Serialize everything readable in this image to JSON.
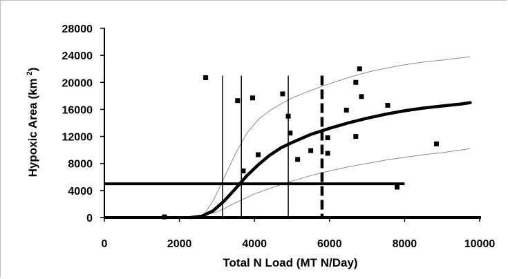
{
  "chart_data": {
    "type": "scatter",
    "xlabel": "Total N Load (MT N/Day)",
    "ylabel": "Hypoxic Area (km ²)",
    "ylabel_main": "Hypoxic Area (km",
    "ylabel_sup": "2",
    "ylabel_close": ")",
    "xlim": [
      0,
      10000
    ],
    "ylim": [
      0,
      28000
    ],
    "x_ticks": [
      0,
      2000,
      4000,
      6000,
      8000,
      10000
    ],
    "y_ticks": [
      0,
      4000,
      8000,
      12000,
      16000,
      20000,
      24000,
      28000
    ],
    "x_tick_labels": [
      "0",
      "2000",
      "4000",
      "6000",
      "8000",
      "10000"
    ],
    "y_tick_labels": [
      "0",
      "4000",
      "8000",
      "12000",
      "16000",
      "20000",
      "24000",
      "28000"
    ],
    "grid": false,
    "legend": "none",
    "points": [
      {
        "x": 1600,
        "y": 100
      },
      {
        "x": 2700,
        "y": 20700
      },
      {
        "x": 3550,
        "y": 17300
      },
      {
        "x": 3700,
        "y": 6900
      },
      {
        "x": 3950,
        "y": 17700
      },
      {
        "x": 4100,
        "y": 9300
      },
      {
        "x": 4750,
        "y": 18300
      },
      {
        "x": 4900,
        "y": 15000
      },
      {
        "x": 4950,
        "y": 12500
      },
      {
        "x": 5150,
        "y": 8600
      },
      {
        "x": 5500,
        "y": 9900
      },
      {
        "x": 5950,
        "y": 11800
      },
      {
        "x": 5950,
        "y": 9500
      },
      {
        "x": 6450,
        "y": 15900
      },
      {
        "x": 6700,
        "y": 12000
      },
      {
        "x": 6700,
        "y": 20000
      },
      {
        "x": 6800,
        "y": 22000
      },
      {
        "x": 6850,
        "y": 17900
      },
      {
        "x": 7550,
        "y": 16600
      },
      {
        "x": 7800,
        "y": 4500
      },
      {
        "x": 8850,
        "y": 10900
      }
    ],
    "series": [
      {
        "role": "fitted curve",
        "x": [
          2300,
          2600,
          2900,
          3200,
          3500,
          3800,
          4100,
          4400,
          4700,
          5000,
          5500,
          6000,
          6500,
          7000,
          7500,
          8000,
          8500,
          9000,
          9500,
          9750
        ],
        "values": [
          0,
          200,
          1000,
          2500,
          4300,
          6200,
          7800,
          9200,
          10300,
          11100,
          12300,
          13200,
          14000,
          14700,
          15300,
          15800,
          16200,
          16500,
          16800,
          17000
        ]
      },
      {
        "role": "upper confidence band",
        "x": [
          2600,
          2900,
          3200,
          3500,
          3800,
          4100,
          4400,
          4700,
          5000,
          5500,
          6000,
          6500,
          7000,
          7500,
          8000,
          8500,
          9000,
          9750
        ],
        "values": [
          0,
          2500,
          6000,
          9500,
          12500,
          14500,
          15800,
          16800,
          17700,
          18800,
          19800,
          20700,
          21500,
          22100,
          22600,
          23000,
          23300,
          23800
        ]
      },
      {
        "role": "lower confidence band",
        "x": [
          2400,
          3000,
          3500,
          4000,
          4500,
          5000,
          5500,
          6000,
          6500,
          7000,
          7500,
          8000,
          8500,
          9000,
          9750
        ],
        "values": [
          0,
          800,
          2200,
          3500,
          4500,
          5400,
          6200,
          6900,
          7500,
          8000,
          8500,
          8900,
          9300,
          9600,
          10200
        ]
      }
    ],
    "reference_lines": {
      "horizontal": {
        "y": 5000,
        "x_from": 0,
        "x_to": 8000
      },
      "vertical": [
        {
          "x": 3150,
          "style": "solid"
        },
        {
          "x": 3650,
          "style": "solid"
        },
        {
          "x": 4900,
          "style": "solid"
        },
        {
          "x": 5800,
          "style": "dashed"
        }
      ],
      "y_max": 21000
    }
  }
}
